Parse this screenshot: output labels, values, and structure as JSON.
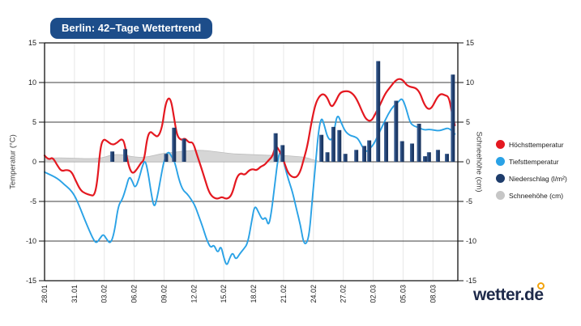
{
  "header": {
    "badge": "Berlin: 42–Tage Wettertrend"
  },
  "logo": {
    "text": "wetter.de"
  },
  "legend": {
    "items": [
      {
        "label": "Höchsttemperatur",
        "color": "#e41820",
        "name": "hoechsttemperatur"
      },
      {
        "label": "Tiefsttemperatur",
        "color": "#2aa2e6",
        "name": "tiefsttemperatur"
      },
      {
        "label": "Niederschlag (l/m²)",
        "color": "#1e3c6b",
        "name": "niederschlag"
      },
      {
        "label": "Schneehöhe (cm)",
        "color": "#c6c6c6",
        "name": "schneehoehe"
      }
    ]
  },
  "chart_data": {
    "type": "combo",
    "title": "Berlin: 42–Tage Wettertrend",
    "ylabel_left": "Temperatur (°C)",
    "ylabel_right": "Schneehöhe (cm)",
    "ylim": [
      -15,
      15
    ],
    "y_ticks": [
      15,
      10,
      5,
      0,
      -5,
      -10,
      -15
    ],
    "xlim_days": [
      0,
      41.5
    ],
    "x_tick_days": [
      0,
      3,
      6,
      9,
      12,
      15,
      18,
      21,
      24,
      27,
      30,
      33,
      36,
      39
    ],
    "x_tick_labels": [
      "28.01",
      "31.01",
      "03.02",
      "06.02",
      "09.02",
      "12.02",
      "15.02",
      "18.02",
      "21.02",
      "24.02",
      "27.02",
      "02.03",
      "05.03",
      "08.03"
    ],
    "grid": {
      "horizontal": true,
      "vertical": "faint"
    },
    "legend_position": "right",
    "series": [
      {
        "name": "Schneehöhe (cm)",
        "type": "area",
        "color": "#d4d4d4",
        "stroke": "#bdbdbd",
        "points": [
          [
            0,
            0.45
          ],
          [
            1,
            0.5
          ],
          [
            2,
            0.5
          ],
          [
            3,
            0.45
          ],
          [
            4,
            0.4
          ],
          [
            5,
            0.4
          ],
          [
            6,
            0.55
          ],
          [
            6.6,
            0.85
          ],
          [
            7.4,
            0.95
          ],
          [
            8.2,
            0.8
          ],
          [
            9,
            0.6
          ],
          [
            10,
            0.55
          ],
          [
            11,
            0.8
          ],
          [
            12,
            1.1
          ],
          [
            13,
            1.2
          ],
          [
            14,
            1.35
          ],
          [
            15,
            1.45
          ],
          [
            16,
            1.45
          ],
          [
            17,
            1.3
          ],
          [
            18,
            1.15
          ],
          [
            19,
            1.0
          ],
          [
            20,
            0.95
          ],
          [
            21,
            0.9
          ],
          [
            22,
            0.85
          ],
          [
            23,
            0.8
          ],
          [
            24,
            0.8
          ],
          [
            25,
            0.7
          ],
          [
            26,
            0.6
          ],
          [
            26.5,
            0.45
          ],
          [
            27,
            0.25
          ],
          [
            27.5,
            0.08
          ],
          [
            27.9,
            0
          ]
        ]
      },
      {
        "name": "Tiefsttemperatur",
        "type": "line",
        "color": "#2aa2e6",
        "width": 1.9,
        "points": [
          [
            0,
            -1.3
          ],
          [
            0.5,
            -1.6
          ],
          [
            1.0,
            -1.9
          ],
          [
            1.5,
            -2.3
          ],
          [
            2.0,
            -2.9
          ],
          [
            2.5,
            -3.4
          ],
          [
            3.0,
            -4.2
          ],
          [
            3.5,
            -5.6
          ],
          [
            4.0,
            -7.2
          ],
          [
            4.5,
            -8.7
          ],
          [
            4.9,
            -9.8
          ],
          [
            5.2,
            -10.3
          ],
          [
            5.6,
            -9.6
          ],
          [
            5.9,
            -9.1
          ],
          [
            6.2,
            -9.7
          ],
          [
            6.6,
            -10.4
          ],
          [
            7.0,
            -9.0
          ],
          [
            7.4,
            -5.5
          ],
          [
            7.8,
            -4.8
          ],
          [
            8.2,
            -3.2
          ],
          [
            8.5,
            -1.8
          ],
          [
            8.8,
            -2.4
          ],
          [
            9.1,
            -3.4
          ],
          [
            9.5,
            -2.1
          ],
          [
            9.8,
            -0.6
          ],
          [
            10.1,
            0.3
          ],
          [
            10.4,
            -1.4
          ],
          [
            10.7,
            -3.9
          ],
          [
            11.0,
            -5.9
          ],
          [
            11.3,
            -4.6
          ],
          [
            11.7,
            -1.8
          ],
          [
            12.0,
            0.2
          ],
          [
            12.4,
            1.4
          ],
          [
            12.8,
            0.6
          ],
          [
            13.1,
            -0.1
          ],
          [
            13.5,
            -2.3
          ],
          [
            13.9,
            -3.6
          ],
          [
            14.3,
            -4.0
          ],
          [
            14.7,
            -4.7
          ],
          [
            15.1,
            -5.5
          ],
          [
            15.5,
            -6.9
          ],
          [
            15.9,
            -8.3
          ],
          [
            16.3,
            -9.9
          ],
          [
            16.7,
            -10.9
          ],
          [
            17.0,
            -10.4
          ],
          [
            17.4,
            -11.6
          ],
          [
            17.7,
            -10.5
          ],
          [
            18.0,
            -12.1
          ],
          [
            18.3,
            -13.2
          ],
          [
            18.6,
            -12.1
          ],
          [
            18.9,
            -11.4
          ],
          [
            19.2,
            -12.4
          ],
          [
            19.6,
            -11.6
          ],
          [
            20.0,
            -11.0
          ],
          [
            20.4,
            -10.3
          ],
          [
            20.8,
            -7.5
          ],
          [
            21.1,
            -5.4
          ],
          [
            21.5,
            -6.4
          ],
          [
            21.9,
            -7.4
          ],
          [
            22.2,
            -6.9
          ],
          [
            22.5,
            -8.2
          ],
          [
            22.8,
            -6.2
          ],
          [
            23.1,
            -3.0
          ],
          [
            23.5,
            1.0
          ],
          [
            23.8,
            1.3
          ],
          [
            24.1,
            -0.5
          ],
          [
            24.5,
            -2.3
          ],
          [
            24.9,
            -3.8
          ],
          [
            25.3,
            -6.0
          ],
          [
            25.7,
            -8.0
          ],
          [
            26.0,
            -10.2
          ],
          [
            26.3,
            -10.4
          ],
          [
            26.6,
            -9.0
          ],
          [
            26.9,
            -4.5
          ],
          [
            27.2,
            -0.5
          ],
          [
            27.5,
            3.8
          ],
          [
            27.8,
            5.7
          ],
          [
            28.1,
            4.6
          ],
          [
            28.4,
            3.1
          ],
          [
            28.8,
            2.6
          ],
          [
            29.1,
            4.0
          ],
          [
            29.4,
            6.1
          ],
          [
            29.8,
            4.9
          ],
          [
            30.2,
            3.8
          ],
          [
            30.7,
            3.3
          ],
          [
            31.1,
            3.2
          ],
          [
            31.5,
            2.9
          ],
          [
            31.9,
            1.9
          ],
          [
            32.3,
            1.2
          ],
          [
            32.7,
            1.7
          ],
          [
            33.1,
            2.3
          ],
          [
            33.5,
            3.4
          ],
          [
            34.0,
            4.7
          ],
          [
            34.5,
            6.0
          ],
          [
            35.0,
            7.0
          ],
          [
            35.5,
            7.5
          ],
          [
            35.9,
            8.1
          ],
          [
            36.3,
            6.8
          ],
          [
            36.7,
            4.9
          ],
          [
            37.1,
            4.5
          ],
          [
            37.6,
            4.3
          ],
          [
            38.1,
            4.0
          ],
          [
            38.6,
            4.1
          ],
          [
            39.1,
            4.0
          ],
          [
            39.6,
            3.9
          ],
          [
            40.1,
            4.1
          ],
          [
            40.6,
            4.3
          ],
          [
            41.2,
            3.5
          ]
        ]
      },
      {
        "name": "Höchsttemperatur",
        "type": "line",
        "color": "#e41820",
        "width": 2.2,
        "points": [
          [
            0,
            0.8
          ],
          [
            0.4,
            0.2
          ],
          [
            0.8,
            0.6
          ],
          [
            1.3,
            -0.5
          ],
          [
            1.7,
            -1.2
          ],
          [
            2.2,
            -1.0
          ],
          [
            2.7,
            -1.2
          ],
          [
            3.1,
            -2.3
          ],
          [
            3.6,
            -3.6
          ],
          [
            4.1,
            -4.0
          ],
          [
            4.6,
            -4.2
          ],
          [
            5.0,
            -4.3
          ],
          [
            5.3,
            -2.5
          ],
          [
            5.6,
            1.8
          ],
          [
            5.9,
            2.9
          ],
          [
            6.3,
            2.6
          ],
          [
            6.8,
            2.1
          ],
          [
            7.3,
            2.4
          ],
          [
            7.7,
            2.9
          ],
          [
            8.0,
            2.6
          ],
          [
            8.3,
            0.3
          ],
          [
            8.6,
            -1.1
          ],
          [
            8.9,
            -1.5
          ],
          [
            9.3,
            -0.9
          ],
          [
            9.7,
            -0.1
          ],
          [
            10.0,
            0.2
          ],
          [
            10.3,
            3.0
          ],
          [
            10.6,
            3.9
          ],
          [
            11.0,
            3.4
          ],
          [
            11.4,
            3.1
          ],
          [
            11.8,
            4.3
          ],
          [
            12.1,
            7.0
          ],
          [
            12.4,
            8.1
          ],
          [
            12.7,
            7.8
          ],
          [
            13.0,
            5.6
          ],
          [
            13.3,
            3.3
          ],
          [
            13.7,
            2.7
          ],
          [
            14.1,
            3.0
          ],
          [
            14.5,
            2.4
          ],
          [
            14.9,
            2.5
          ],
          [
            15.3,
            0.9
          ],
          [
            15.7,
            -0.6
          ],
          [
            16.1,
            -2.2
          ],
          [
            16.5,
            -3.8
          ],
          [
            16.9,
            -4.5
          ],
          [
            17.4,
            -4.7
          ],
          [
            17.8,
            -4.4
          ],
          [
            18.2,
            -4.7
          ],
          [
            18.6,
            -4.5
          ],
          [
            18.9,
            -3.8
          ],
          [
            19.3,
            -1.9
          ],
          [
            19.7,
            -1.4
          ],
          [
            20.1,
            -1.7
          ],
          [
            20.5,
            -1.1
          ],
          [
            20.9,
            -0.9
          ],
          [
            21.3,
            -1.1
          ],
          [
            21.7,
            -0.6
          ],
          [
            22.1,
            -0.4
          ],
          [
            22.5,
            0.2
          ],
          [
            22.9,
            0.7
          ],
          [
            23.2,
            2.1
          ],
          [
            23.6,
            1.4
          ],
          [
            24.0,
            0.2
          ],
          [
            24.4,
            -1.3
          ],
          [
            24.8,
            -1.9
          ],
          [
            25.3,
            -2.0
          ],
          [
            25.7,
            -1.2
          ],
          [
            26.0,
            0.2
          ],
          [
            26.4,
            2.0
          ],
          [
            26.8,
            5.0
          ],
          [
            27.2,
            7.3
          ],
          [
            27.6,
            8.3
          ],
          [
            28.0,
            8.6
          ],
          [
            28.4,
            8.1
          ],
          [
            28.8,
            6.8
          ],
          [
            29.2,
            7.5
          ],
          [
            29.6,
            8.6
          ],
          [
            30.0,
            8.9
          ],
          [
            30.6,
            8.9
          ],
          [
            31.1,
            8.4
          ],
          [
            31.5,
            7.5
          ],
          [
            31.9,
            6.3
          ],
          [
            32.3,
            5.3
          ],
          [
            32.8,
            5.1
          ],
          [
            33.2,
            6.0
          ],
          [
            33.7,
            7.2
          ],
          [
            34.2,
            8.6
          ],
          [
            34.7,
            9.4
          ],
          [
            35.2,
            10.2
          ],
          [
            35.6,
            10.5
          ],
          [
            36.0,
            10.3
          ],
          [
            36.4,
            9.6
          ],
          [
            36.9,
            9.4
          ],
          [
            37.3,
            9.3
          ],
          [
            37.7,
            8.7
          ],
          [
            38.1,
            7.3
          ],
          [
            38.5,
            6.6
          ],
          [
            38.9,
            6.8
          ],
          [
            39.4,
            8.1
          ],
          [
            39.8,
            8.6
          ],
          [
            40.2,
            8.4
          ],
          [
            40.6,
            8.2
          ],
          [
            40.9,
            6.2
          ],
          [
            41.2,
            4.6
          ]
        ]
      },
      {
        "name": "Niederschlag (l/m²)",
        "type": "bar",
        "color": "#1e3c6b",
        "points": [
          [
            6.8,
            1.3
          ],
          [
            8.1,
            1.6
          ],
          [
            12.2,
            1.0
          ],
          [
            13.0,
            4.3
          ],
          [
            14.0,
            2.9
          ],
          [
            23.2,
            3.6
          ],
          [
            23.9,
            2.1
          ],
          [
            27.8,
            3.4
          ],
          [
            28.4,
            1.2
          ],
          [
            29.0,
            4.4
          ],
          [
            29.6,
            4.0
          ],
          [
            30.2,
            1.0
          ],
          [
            31.3,
            1.5
          ],
          [
            32.1,
            2.0
          ],
          [
            32.6,
            2.7
          ],
          [
            33.5,
            12.7
          ],
          [
            34.3,
            5.0
          ],
          [
            35.3,
            7.7
          ],
          [
            35.9,
            2.6
          ],
          [
            36.9,
            2.3
          ],
          [
            37.6,
            4.8
          ],
          [
            38.2,
            0.7
          ],
          [
            38.6,
            1.2
          ],
          [
            39.5,
            1.5
          ],
          [
            40.4,
            1.0
          ],
          [
            41.0,
            11.0
          ]
        ]
      }
    ]
  }
}
